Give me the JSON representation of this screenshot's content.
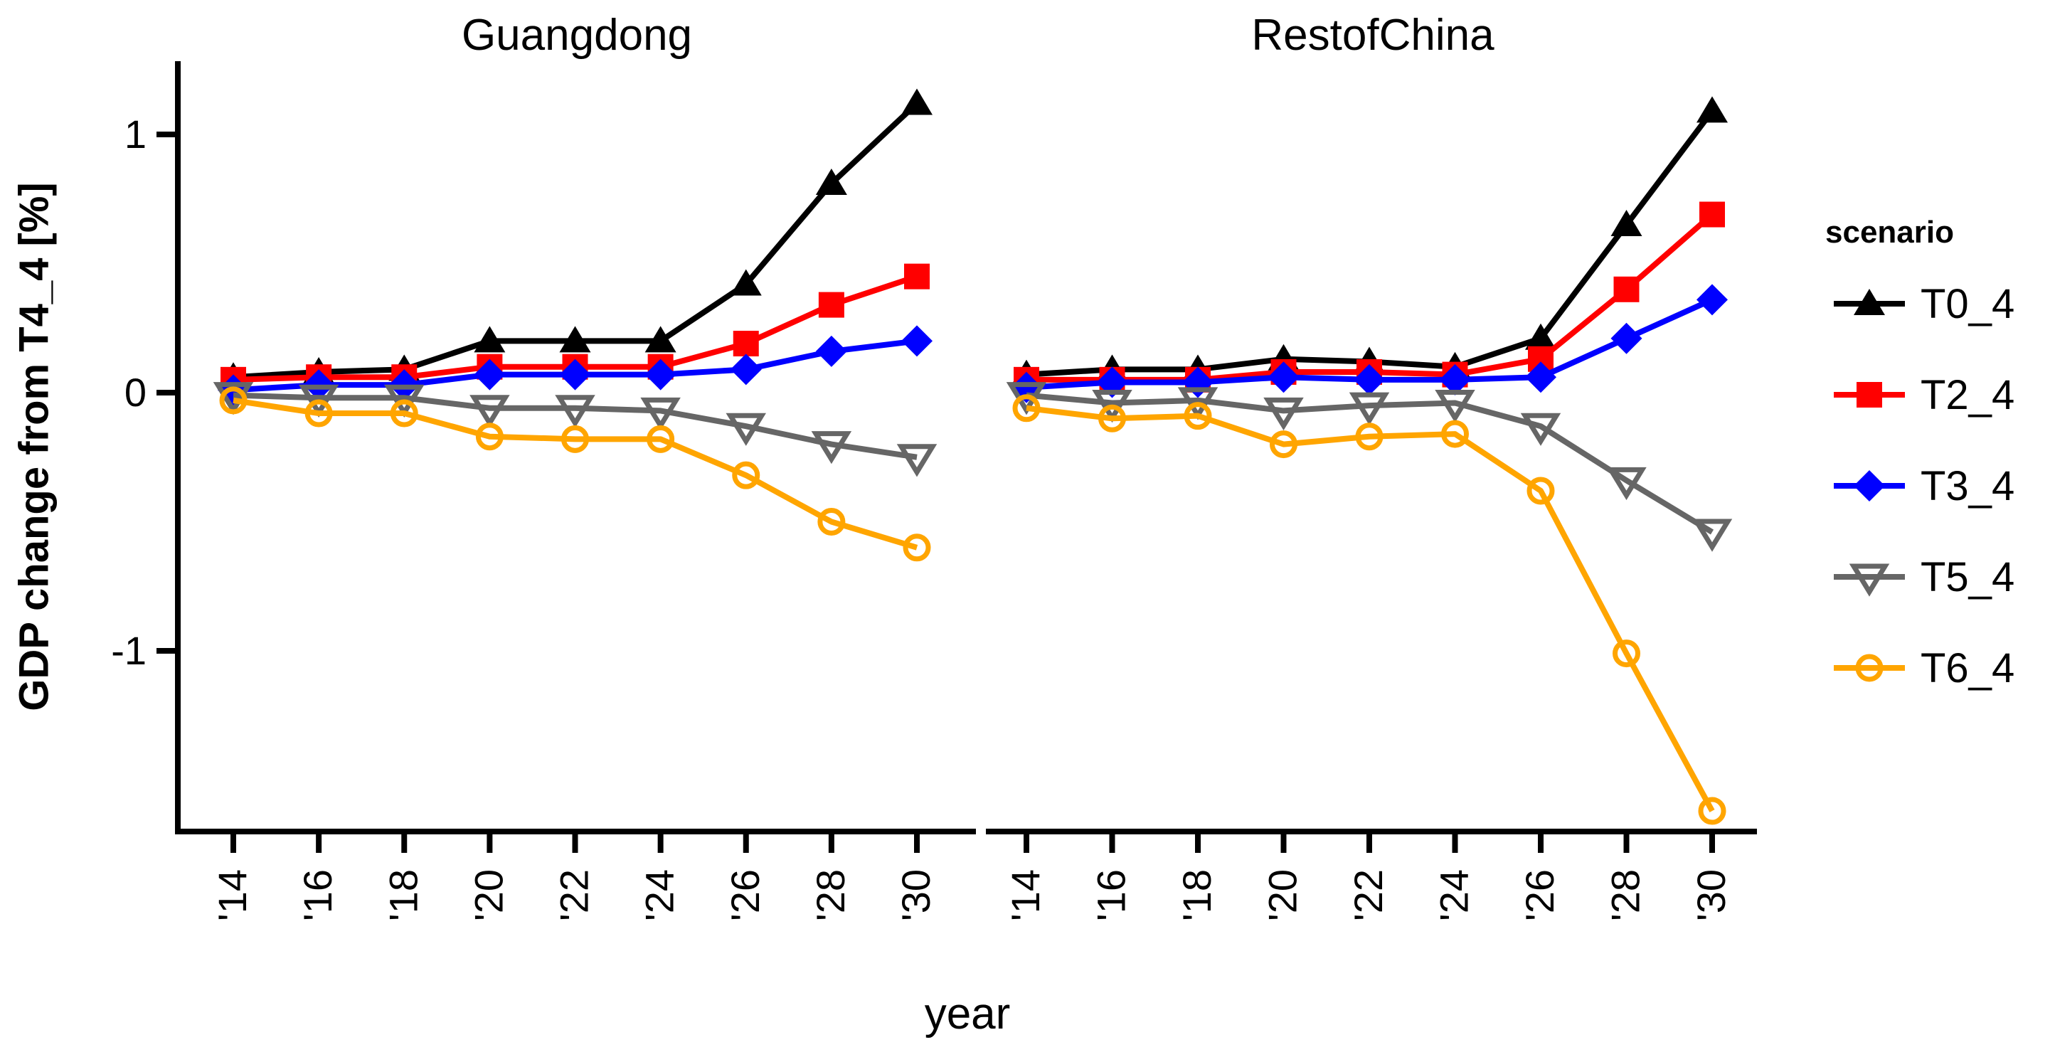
{
  "figure": {
    "background": "#ffffff",
    "panel_titles": [
      "Guangdong",
      "RestofChina"
    ],
    "y_axis": {
      "label": "GDP change from T4_4 [%]",
      "tick_labels": [
        "1",
        "0",
        "-1"
      ],
      "tick_values": [
        1,
        0,
        -1
      ]
    },
    "x_axis": {
      "label": "year",
      "tick_labels": [
        "'14",
        "'16",
        "'18",
        "'20",
        "'22",
        "'24",
        "'26",
        "'28",
        "'30"
      ]
    },
    "legend": {
      "title": "scenario",
      "items": [
        {
          "label": "T0_4",
          "color": "#000000",
          "marker": "triangle-up-filled"
        },
        {
          "label": "T2_4",
          "color": "#ff0000",
          "marker": "square-filled"
        },
        {
          "label": "T3_4",
          "color": "#0000ff",
          "marker": "diamond-filled"
        },
        {
          "label": "T5_4",
          "color": "#666666",
          "marker": "triangle-down-open"
        },
        {
          "label": "T6_4",
          "color": "#ffa500",
          "marker": "circle-open"
        }
      ]
    }
  },
  "chart_data": {
    "type": "line",
    "title": "",
    "xlabel": "year",
    "ylabel": "GDP change from T4_4 [%]",
    "x": [
      2014,
      2016,
      2018,
      2020,
      2022,
      2024,
      2026,
      2028,
      2030
    ],
    "x_tick_labels": [
      "'14",
      "'16",
      "'18",
      "'20",
      "'22",
      "'24",
      "'26",
      "'28",
      "'30"
    ],
    "yticks": [
      1,
      0,
      -1
    ],
    "ylim": [
      -1.7,
      1.3
    ],
    "grid": false,
    "legend_position": "right",
    "legend_title": "scenario",
    "facets": [
      {
        "title": "Guangdong",
        "series": [
          {
            "name": "T0_4",
            "color": "#000000",
            "marker": "triangle-up-filled",
            "values": [
              0.06,
              0.08,
              0.09,
              0.2,
              0.2,
              0.2,
              0.42,
              0.81,
              1.12
            ]
          },
          {
            "name": "T2_4",
            "color": "#ff0000",
            "marker": "square-filled",
            "values": [
              0.05,
              0.06,
              0.06,
              0.1,
              0.1,
              0.1,
              0.19,
              0.34,
              0.45
            ]
          },
          {
            "name": "T3_4",
            "color": "#0000ff",
            "marker": "diamond-filled",
            "values": [
              0.01,
              0.03,
              0.03,
              0.07,
              0.07,
              0.07,
              0.09,
              0.16,
              0.2
            ]
          },
          {
            "name": "T5_4",
            "color": "#666666",
            "marker": "triangle-down-open",
            "values": [
              -0.01,
              -0.02,
              -0.02,
              -0.06,
              -0.06,
              -0.07,
              -0.13,
              -0.2,
              -0.25
            ]
          },
          {
            "name": "T6_4",
            "color": "#ffa500",
            "marker": "circle-open",
            "values": [
              -0.03,
              -0.08,
              -0.08,
              -0.17,
              -0.18,
              -0.18,
              -0.32,
              -0.5,
              -0.6
            ]
          }
        ]
      },
      {
        "title": "RestofChina",
        "series": [
          {
            "name": "T0_4",
            "color": "#000000",
            "marker": "triangle-up-filled",
            "values": [
              0.07,
              0.09,
              0.09,
              0.13,
              0.12,
              0.1,
              0.21,
              0.65,
              1.09
            ]
          },
          {
            "name": "T2_4",
            "color": "#ff0000",
            "marker": "square-filled",
            "values": [
              0.05,
              0.05,
              0.05,
              0.08,
              0.08,
              0.07,
              0.13,
              0.4,
              0.69
            ]
          },
          {
            "name": "T3_4",
            "color": "#0000ff",
            "marker": "diamond-filled",
            "values": [
              0.02,
              0.04,
              0.04,
              0.06,
              0.05,
              0.05,
              0.06,
              0.21,
              0.36
            ]
          },
          {
            "name": "T5_4",
            "color": "#666666",
            "marker": "triangle-down-open",
            "values": [
              -0.01,
              -0.04,
              -0.03,
              -0.07,
              -0.05,
              -0.04,
              -0.13,
              -0.34,
              -0.54
            ]
          },
          {
            "name": "T6_4",
            "color": "#ffa500",
            "marker": "circle-open",
            "values": [
              -0.06,
              -0.1,
              -0.09,
              -0.2,
              -0.17,
              -0.16,
              -0.38,
              -1.01,
              -1.62
            ]
          }
        ]
      }
    ]
  }
}
